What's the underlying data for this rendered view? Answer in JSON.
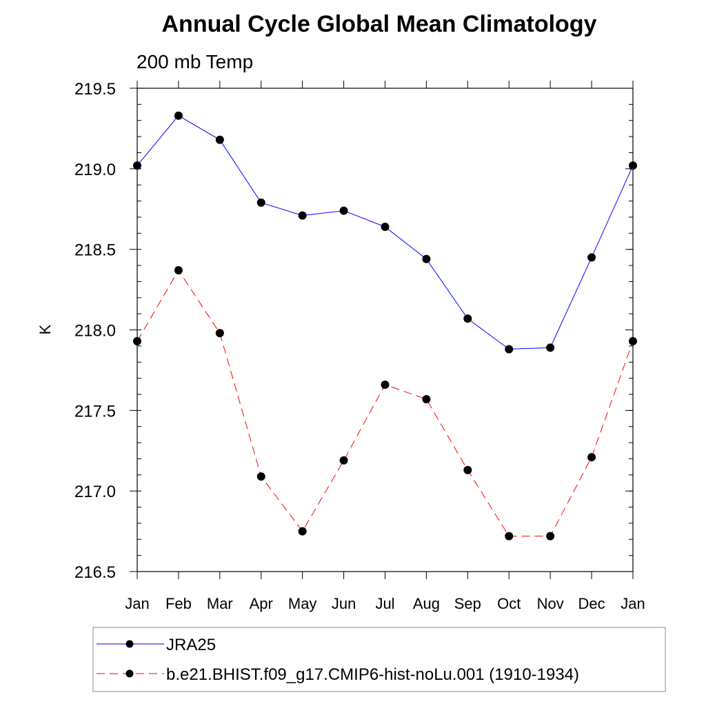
{
  "chart_data": {
    "type": "line",
    "title": "Annual Cycle Global Mean Climatology",
    "subtitle": "200 mb Temp",
    "xlabel": "",
    "ylabel": "K",
    "categories": [
      "Jan",
      "Feb",
      "Mar",
      "Apr",
      "May",
      "Jun",
      "Jul",
      "Aug",
      "Sep",
      "Oct",
      "Nov",
      "Dec",
      "Jan"
    ],
    "ylim": [
      216.5,
      219.5
    ],
    "yticks": [
      216.5,
      217.0,
      217.5,
      218.0,
      218.5,
      219.0,
      219.5
    ],
    "ytick_labels": [
      "216.5",
      "217.0",
      "217.5",
      "218.0",
      "218.5",
      "219.0",
      "219.5"
    ],
    "grid": false,
    "legend_position": "bottom",
    "series": [
      {
        "name": "JRA25",
        "color": "#0000ff",
        "line_style": "solid",
        "marker": "circle",
        "values": [
          219.02,
          219.33,
          219.18,
          218.79,
          218.71,
          218.74,
          218.64,
          218.44,
          218.07,
          217.88,
          217.89,
          218.45,
          219.02
        ]
      },
      {
        "name": "b.e21.BHIST.f09_g17.CMIP6-hist-noLu.001 (1910-1934)",
        "color": "#ff0000",
        "line_style": "dashed",
        "marker": "circle",
        "values": [
          217.93,
          218.37,
          217.98,
          217.09,
          216.75,
          217.19,
          217.66,
          217.57,
          217.13,
          216.72,
          216.72,
          217.21,
          217.93
        ]
      }
    ]
  }
}
